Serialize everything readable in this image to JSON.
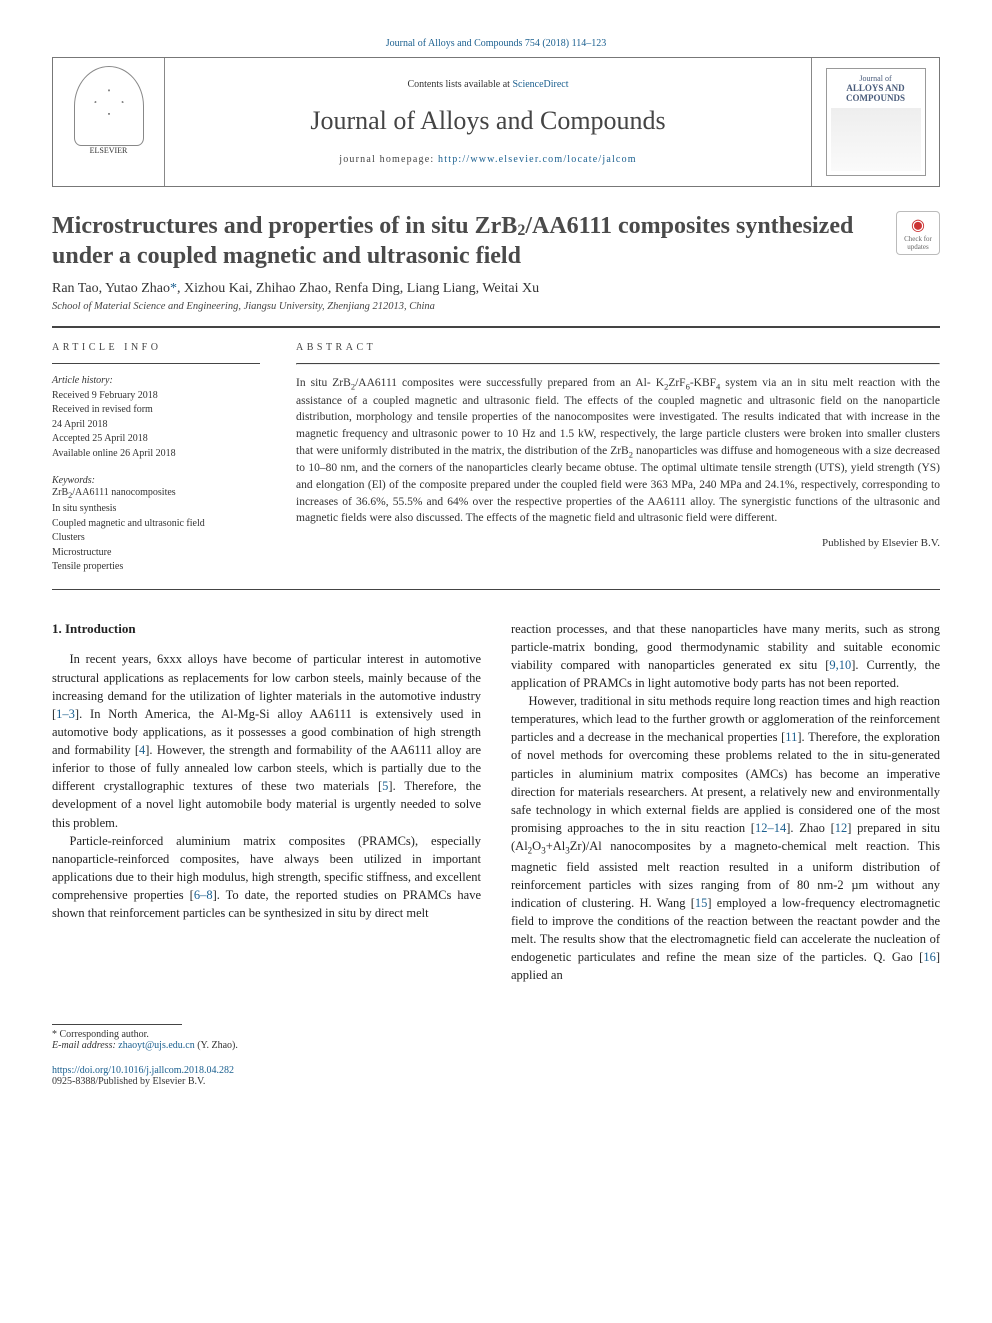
{
  "journal_ref": "Journal of Alloys and Compounds 754 (2018) 114–123",
  "masthead": {
    "contents_prefix": "Contents lists available at ",
    "contents_link": "ScienceDirect",
    "journal_name": "Journal of Alloys and Compounds",
    "homepage_prefix": "journal homepage: ",
    "homepage_link": "http://www.elsevier.com/locate/jalcom",
    "publisher_label": "ELSEVIER",
    "cover_label_top": "Journal of",
    "cover_label_main": "ALLOYS AND COMPOUNDS"
  },
  "badge": {
    "line1": "Check for",
    "line2": "updates"
  },
  "title_html": "Microstructures and properties of in situ ZrB<sub>2</sub>/AA6111 composites synthesized under a coupled magnetic and ultrasonic field",
  "authors_html": "Ran Tao, Yutao Zhao<span class=\"corr\">*</span>, Xizhou Kai, Zhihao Zhao, Renfa Ding, Liang Liang, Weitai Xu",
  "affiliation": "School of Material Science and Engineering, Jiangsu University, Zhenjiang 212013, China",
  "article_info": {
    "head": "article info",
    "history_label": "Article history:",
    "history": [
      "Received 9 February 2018",
      "Received in revised form",
      "24 April 2018",
      "Accepted 25 April 2018",
      "Available online 26 April 2018"
    ],
    "keywords_label": "Keywords:",
    "keywords": [
      "ZrB<sub>2</sub>/AA6111 nanocomposites",
      "In situ synthesis",
      "Coupled magnetic and ultrasonic field",
      "Clusters",
      "Microstructure",
      "Tensile properties"
    ]
  },
  "abstract": {
    "head": "abstract",
    "text_html": "In situ ZrB<sub>2</sub>/AA6111 composites were successfully prepared from an Al- K<sub>2</sub>ZrF<sub>6</sub>-KBF<sub>4</sub> system via an in situ melt reaction with the assistance of a coupled magnetic and ultrasonic field. The effects of the coupled magnetic and ultrasonic field on the nanoparticle distribution, morphology and tensile properties of the nanocomposites were investigated. The results indicated that with increase in the magnetic frequency and ultrasonic power to 10 Hz and 1.5 kW, respectively, the large particle clusters were broken into smaller clusters that were uniformly distributed in the matrix, the distribution of the ZrB<sub>2</sub> nanoparticles was diffuse and homogeneous with a size decreased to 10–80 nm, and the corners of the nanoparticles clearly became obtuse. The optimal ultimate tensile strength (UTS), yield strength (YS) and elongation (El) of the composite prepared under the coupled field were 363 MPa, 240 MPa and 24.1%, respectively, corresponding to increases of 36.6%, 55.5% and 64% over the respective properties of the AA6111 alloy. The synergistic functions of the ultrasonic and magnetic fields were also discussed. The effects of the magnetic field and ultrasonic field were different.",
    "published_by": "Published by Elsevier B.V."
  },
  "intro_head": "1. Introduction",
  "body_left_paras": [
    "In recent years, 6xxx alloys have become of particular interest in automotive structural applications as replacements for low carbon steels, mainly because of the increasing demand for the utilization of lighter materials in the automotive industry [<a class=\"ref\" href=\"#\">1–3</a>]. In North America, the Al-Mg-Si alloy AA6111 is extensively used in automotive body applications, as it possesses a good combination of high strength and formability [<a class=\"ref\" href=\"#\">4</a>]. However, the strength and formability of the AA6111 alloy are inferior to those of fully annealed low carbon steels, which is partially due to the different crystallographic textures of these two materials [<a class=\"ref\" href=\"#\">5</a>]. Therefore, the development of a novel light automobile body material is urgently needed to solve this problem.",
    "Particle-reinforced aluminium matrix composites (PRAMCs), especially nanoparticle-reinforced composites, have always been utilized in important applications due to their high modulus, high strength, specific stiffness, and excellent comprehensive properties [<a class=\"ref\" href=\"#\">6–8</a>]. To date, the reported studies on PRAMCs have shown that reinforcement particles can be synthesized in situ by direct melt"
  ],
  "body_right_paras": [
    "reaction processes, and that these nanoparticles have many merits, such as strong particle-matrix bonding, good thermodynamic stability and suitable economic viability compared with nanoparticles generated ex situ [<a class=\"ref\" href=\"#\">9,10</a>]. Currently, the application of PRAMCs in light automotive body parts has not been reported.",
    "However, traditional in situ methods require long reaction times and high reaction temperatures, which lead to the further growth or agglomeration of the reinforcement particles and a decrease in the mechanical properties [<a class=\"ref\" href=\"#\">11</a>]. Therefore, the exploration of novel methods for overcoming these problems related to the in situ-generated particles in aluminium matrix composites (AMCs) has become an imperative direction for materials researchers. At present, a relatively new and environmentally safe technology in which external fields are applied is considered one of the most promising approaches to the in situ reaction [<a class=\"ref\" href=\"#\">12–14</a>]. Zhao [<a class=\"ref\" href=\"#\">12</a>] prepared in situ (Al<sub>2</sub>O<sub>3</sub>+Al<sub>3</sub>Zr)/Al nanocomposites by a magneto-chemical melt reaction. This magnetic field assisted melt reaction resulted in a uniform distribution of reinforcement particles with sizes ranging from of 80 nm-2 µm without any indication of clustering. H. Wang [<a class=\"ref\" href=\"#\">15</a>] employed a low-frequency electromagnetic field to improve the conditions of the reaction between the reactant powder and the melt. The results show that the electromagnetic field can accelerate the nucleation of endogenetic particulates and refine the mean size of the particles. Q. Gao [<a class=\"ref\" href=\"#\">16</a>] applied an"
  ],
  "footer": {
    "corr_label": "* Corresponding author.",
    "email_label": "E-mail address: ",
    "email": "zhaoyt@ujs.edu.cn",
    "email_suffix": " (Y. Zhao).",
    "doi": "https://doi.org/10.1016/j.jallcom.2018.04.282",
    "issn_line": "0925-8388/Published by Elsevier B.V."
  },
  "colors": {
    "link": "#1a5f8f",
    "text": "#333333",
    "rule": "#444444"
  }
}
